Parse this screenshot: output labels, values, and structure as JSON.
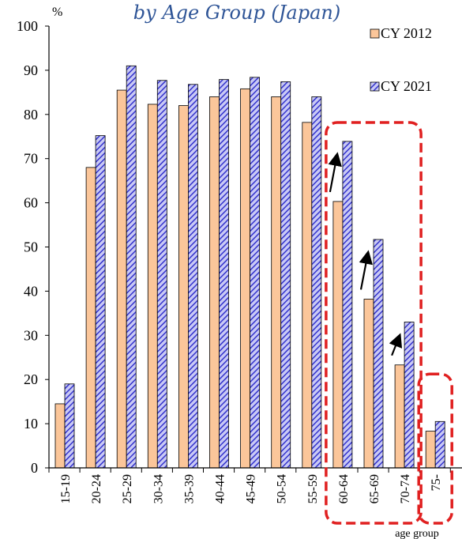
{
  "chart_data": {
    "type": "bar",
    "title": "by Age Group (Japan)",
    "ylabel": "%",
    "xlabel": "age group",
    "ylim": [
      0,
      100
    ],
    "yticks": [
      0,
      10,
      20,
      30,
      40,
      50,
      60,
      70,
      80,
      90,
      100
    ],
    "grid": false,
    "legend_position": "top-right",
    "categories": [
      "15-19",
      "20-24",
      "25-29",
      "30-34",
      "35-39",
      "40-44",
      "45-49",
      "50-54",
      "55-59",
      "60-64",
      "65-69",
      "70-74",
      "75-"
    ],
    "series": [
      {
        "name": "CY 2012",
        "color": "#fbc69a",
        "pattern": "solid",
        "values": [
          14.5,
          68.0,
          85.5,
          82.3,
          82.0,
          84.0,
          85.8,
          84.0,
          78.2,
          60.3,
          38.2,
          23.3,
          8.3
        ]
      },
      {
        "name": "CY 2021",
        "color": "#3f3fd0",
        "pattern": "hatched",
        "values": [
          19.0,
          75.2,
          91.0,
          87.7,
          86.8,
          87.9,
          88.4,
          87.4,
          84.0,
          73.9,
          51.7,
          33.0,
          10.5
        ]
      }
    ],
    "highlights": [
      {
        "from_category": "60-64",
        "to_category": "70-74",
        "color": "#e02020",
        "style": "dashed"
      },
      {
        "from_category": "75-",
        "to_category": "75-",
        "color": "#e02020",
        "style": "dashed"
      }
    ],
    "arrows": [
      "60-64",
      "65-69",
      "70-74"
    ]
  }
}
